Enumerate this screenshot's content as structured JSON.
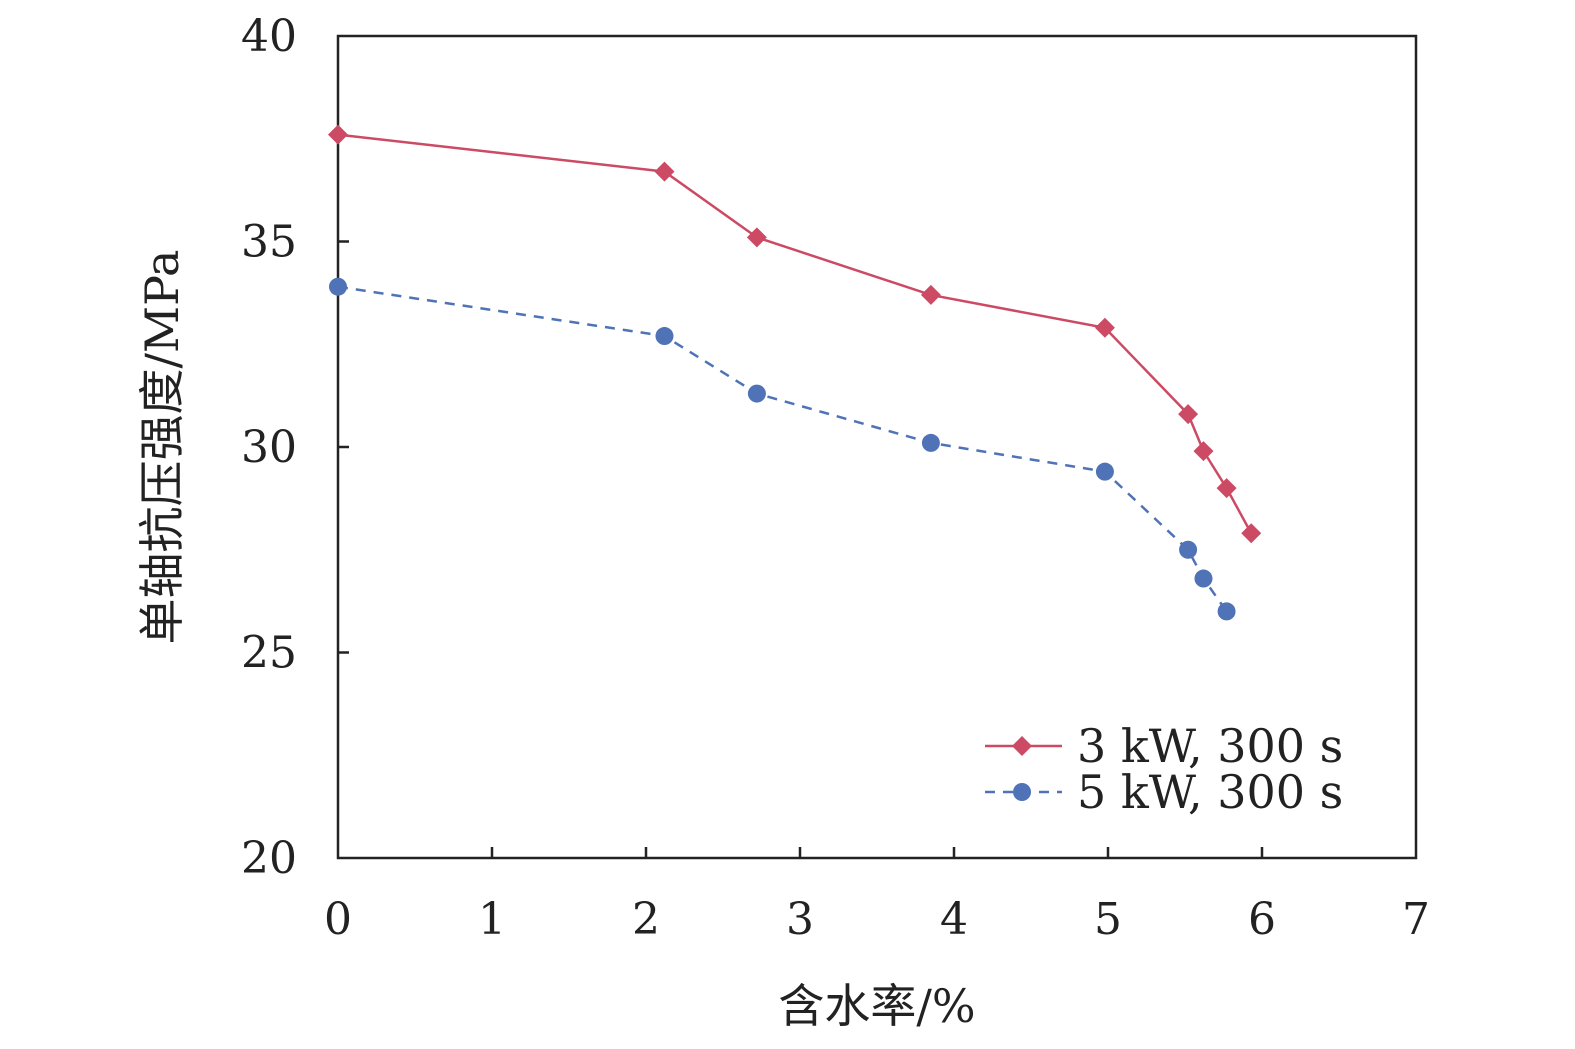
{
  "chart_data": {
    "type": "line",
    "title": "",
    "xlabel": "含水率/%",
    "ylabel": "单轴抗压强度/MPa",
    "xlim": [
      0,
      7
    ],
    "ylim": [
      20,
      40
    ],
    "xticks": [
      0,
      1,
      2,
      3,
      4,
      5,
      6,
      7
    ],
    "yticks": [
      20,
      25,
      30,
      35,
      40
    ],
    "xtick_labels": [
      "0",
      "1",
      "2",
      "3",
      "4",
      "5",
      "6",
      "7"
    ],
    "ytick_labels": [
      "20",
      "25",
      "30",
      "35",
      "40"
    ],
    "grid": false,
    "legend_position": "bottom-right",
    "series": [
      {
        "name": "3 kW, 300 s",
        "color": "#cc4a64",
        "marker": "diamond",
        "line_style": "solid",
        "x": [
          0,
          2.12,
          2.72,
          3.85,
          4.98,
          5.52,
          5.62,
          5.77,
          5.93
        ],
        "y": [
          37.6,
          36.7,
          35.1,
          33.7,
          32.9,
          30.8,
          29.9,
          29.0,
          27.9
        ]
      },
      {
        "name": "5 kW, 300 s",
        "color": "#4f73b6",
        "marker": "circle",
        "line_style": "dashed",
        "x": [
          0,
          2.12,
          2.72,
          3.85,
          4.98,
          5.52,
          5.62,
          5.77
        ],
        "y": [
          33.9,
          32.7,
          31.3,
          30.1,
          29.4,
          27.5,
          26.8,
          26.0
        ]
      }
    ]
  }
}
